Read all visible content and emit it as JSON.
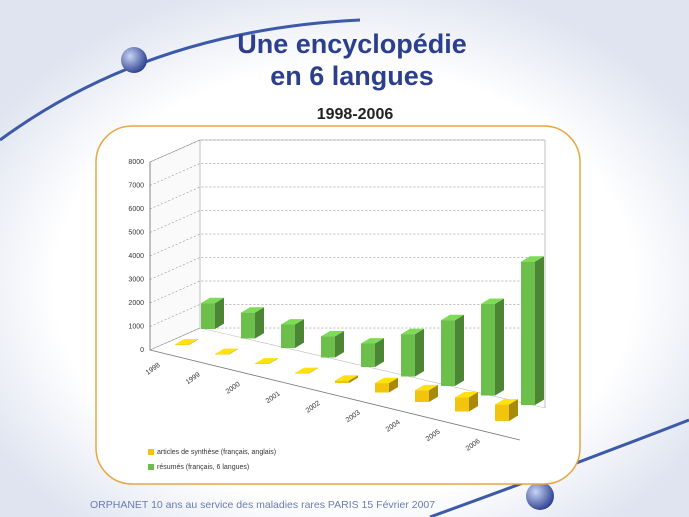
{
  "chart_data": {
    "type": "bar3d",
    "title": [
      "Une encyclopédie",
      "en 6 langues"
    ],
    "subtitle": "1998-2006",
    "categories": [
      "1998",
      "1999",
      "2000",
      "2001",
      "2002",
      "2003",
      "2004",
      "2005",
      "2006"
    ],
    "series": [
      {
        "name": "articles de synthèse (français, anglais)",
        "color": "#f2c40c",
        "values": [
          20,
          20,
          20,
          20,
          100,
          400,
          500,
          600,
          700
        ]
      },
      {
        "name": "résumés (français, 6 langues)",
        "color": "#6cbf4a",
        "values": [
          1100,
          1100,
          1000,
          900,
          1000,
          1800,
          2800,
          3900,
          6100
        ]
      }
    ],
    "ylim": [
      0,
      8000
    ],
    "yticks": [
      0,
      1000,
      2000,
      3000,
      4000,
      5000,
      6000,
      7000,
      8000
    ],
    "grid": true,
    "legend": "bottom-left",
    "footer": "ORPHANET 10 ans au service des maladies rares PARIS 15 Février 2007"
  }
}
